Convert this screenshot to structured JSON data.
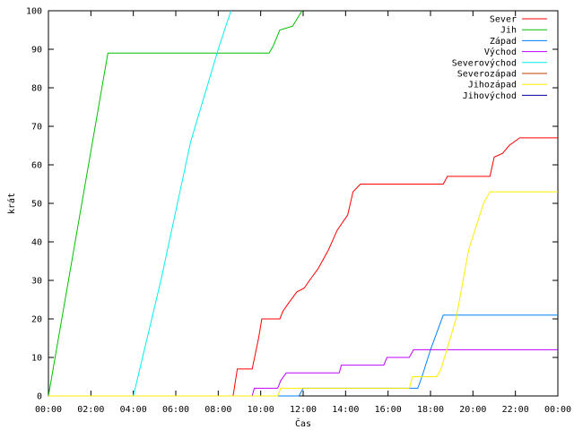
{
  "chart_data": {
    "type": "line",
    "title": "",
    "xlabel": "Čas",
    "ylabel": "krát",
    "x_ticks": [
      "00:00",
      "02:00",
      "04:00",
      "06:00",
      "08:00",
      "10:00",
      "12:00",
      "14:00",
      "16:00",
      "18:00",
      "20:00",
      "22:00",
      "00:00"
    ],
    "y_ticks": [
      "0",
      "10",
      "20",
      "30",
      "40",
      "50",
      "60",
      "70",
      "80",
      "90",
      "100"
    ],
    "xlim_hours": [
      0,
      24
    ],
    "ylim": [
      0,
      100
    ],
    "legend_position": "top-right",
    "grid": false,
    "series": [
      {
        "name": "Sever",
        "color": "#ff0000",
        "points": [
          [
            0,
            0
          ],
          [
            8.7,
            0
          ],
          [
            8.9,
            7
          ],
          [
            9.6,
            7
          ],
          [
            9.9,
            15
          ],
          [
            10.05,
            20
          ],
          [
            10.9,
            20
          ],
          [
            11.05,
            22
          ],
          [
            11.3,
            24
          ],
          [
            11.7,
            27
          ],
          [
            12.05,
            28
          ],
          [
            12.3,
            30
          ],
          [
            12.7,
            33
          ],
          [
            13.2,
            38
          ],
          [
            13.6,
            43
          ],
          [
            14.1,
            47
          ],
          [
            14.35,
            53
          ],
          [
            14.7,
            55
          ],
          [
            18.6,
            55
          ],
          [
            18.8,
            57
          ],
          [
            20.8,
            57
          ],
          [
            21.0,
            62
          ],
          [
            21.4,
            63
          ],
          [
            21.7,
            65
          ],
          [
            22.2,
            67
          ],
          [
            24,
            67
          ]
        ]
      },
      {
        "name": "Jih",
        "color": "#00c000",
        "points": [
          [
            0,
            0
          ],
          [
            2.8,
            89
          ],
          [
            10.4,
            89
          ],
          [
            10.6,
            91
          ],
          [
            10.9,
            95
          ],
          [
            11.5,
            96
          ],
          [
            11.95,
            100
          ]
        ]
      },
      {
        "name": "Západ",
        "color": "#0080ff",
        "points": [
          [
            0,
            0
          ],
          [
            11.8,
            0
          ],
          [
            12.0,
            2
          ],
          [
            17.4,
            2
          ],
          [
            17.6,
            5
          ],
          [
            18.0,
            12
          ],
          [
            18.4,
            18
          ],
          [
            18.6,
            21
          ],
          [
            24,
            21
          ]
        ]
      },
      {
        "name": "Východ",
        "color": "#c000ff",
        "points": [
          [
            0,
            0
          ],
          [
            9.6,
            0
          ],
          [
            9.7,
            2
          ],
          [
            10.8,
            2
          ],
          [
            10.95,
            4
          ],
          [
            11.2,
            6
          ],
          [
            13.7,
            6
          ],
          [
            13.8,
            8
          ],
          [
            15.8,
            8
          ],
          [
            15.95,
            10
          ],
          [
            17.0,
            10
          ],
          [
            17.2,
            12
          ],
          [
            24,
            12
          ]
        ]
      },
      {
        "name": "Severovýchod",
        "color": "#00eeee",
        "points": [
          [
            0,
            0
          ],
          [
            4.0,
            0
          ],
          [
            5.3,
            30
          ],
          [
            6.7,
            66
          ],
          [
            8.0,
            90
          ],
          [
            8.6,
            100
          ]
        ]
      },
      {
        "name": "Severozápad",
        "color": "#c04000",
        "points": []
      },
      {
        "name": "Jihozápad",
        "color": "#ffee00",
        "points": [
          [
            0,
            0
          ],
          [
            10.8,
            0
          ],
          [
            10.95,
            2
          ],
          [
            17.0,
            2
          ],
          [
            17.15,
            5
          ],
          [
            18.3,
            5
          ],
          [
            18.5,
            7
          ],
          [
            19.2,
            20
          ],
          [
            19.8,
            38
          ],
          [
            20.5,
            50
          ],
          [
            20.8,
            53
          ],
          [
            24,
            53
          ]
        ]
      },
      {
        "name": "Jihovýchod",
        "color": "#0000a0",
        "points": []
      }
    ]
  }
}
